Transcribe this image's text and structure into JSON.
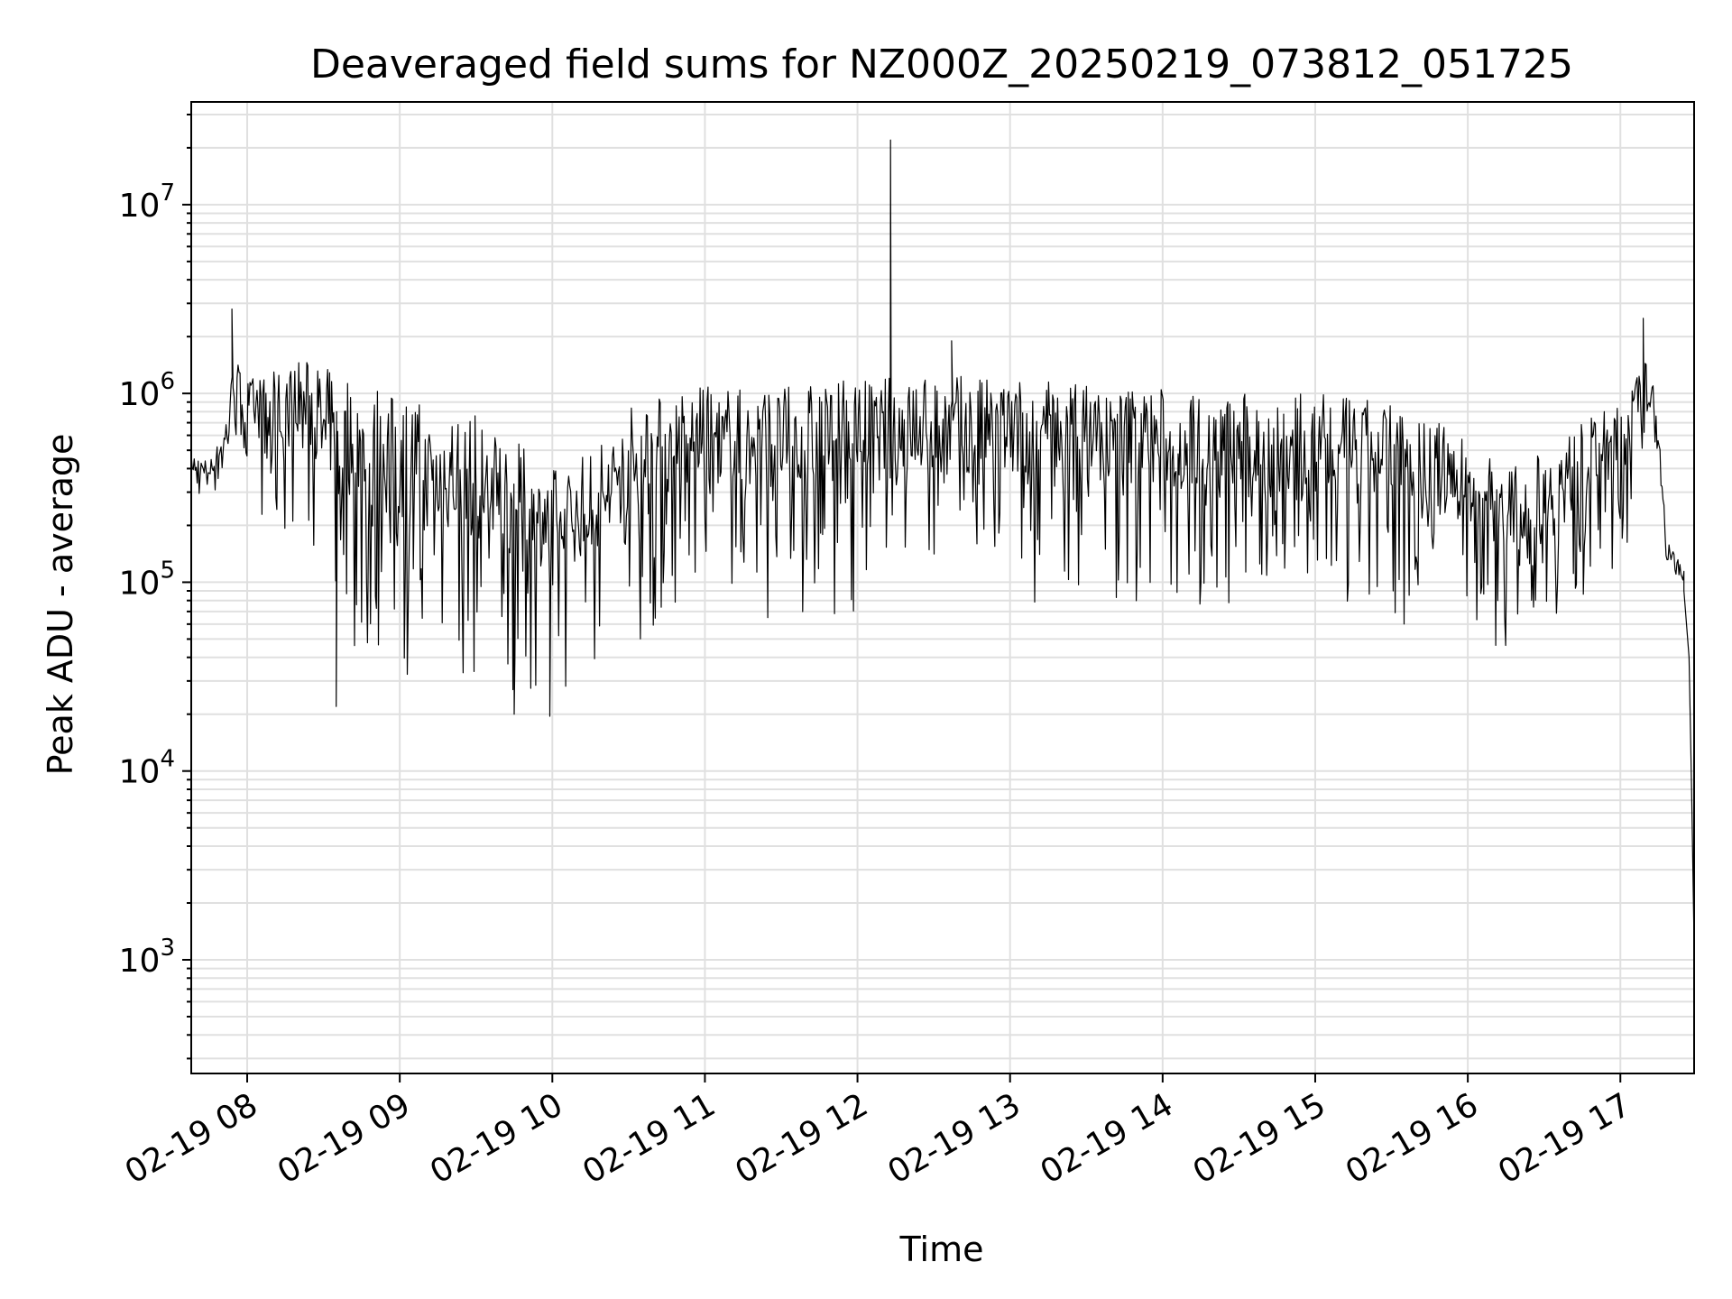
{
  "chart_data": {
    "type": "line",
    "title": "Deaveraged field sums for NZ000Z_20250219_073812_051725",
    "xlabel": "Time",
    "ylabel": "Peak ADU - average",
    "yscale": "log",
    "ylim": [
      250,
      35000000
    ],
    "xlim": [
      "2025-02-19 07:38",
      "2025-02-19 17:29"
    ],
    "grid": true,
    "grid_which": "both",
    "line_color": "#000000",
    "grid_color": "#e0e0e0",
    "x_ticks": [
      {
        "value": "2025-02-19 08:00",
        "label": "02-19 08"
      },
      {
        "value": "2025-02-19 09:00",
        "label": "02-19 09"
      },
      {
        "value": "2025-02-19 10:00",
        "label": "02-19 10"
      },
      {
        "value": "2025-02-19 11:00",
        "label": "02-19 11"
      },
      {
        "value": "2025-02-19 12:00",
        "label": "02-19 12"
      },
      {
        "value": "2025-02-19 13:00",
        "label": "02-19 13"
      },
      {
        "value": "2025-02-19 14:00",
        "label": "02-19 14"
      },
      {
        "value": "2025-02-19 15:00",
        "label": "02-19 15"
      },
      {
        "value": "2025-02-19 16:00",
        "label": "02-19 16"
      },
      {
        "value": "2025-02-19 17:00",
        "label": "02-19 17"
      }
    ],
    "y_ticks": [
      {
        "value": 1000,
        "base": "10",
        "exp": "3"
      },
      {
        "value": 10000,
        "base": "10",
        "exp": "4"
      },
      {
        "value": 100000,
        "base": "10",
        "exp": "5"
      },
      {
        "value": 1000000,
        "base": "10",
        "exp": "6"
      },
      {
        "value": 10000000,
        "base": "10",
        "exp": "7"
      }
    ],
    "series": [
      {
        "envelope": [
          {
            "x": "2025-02-19 07:38",
            "low": 300000,
            "high": 480000
          },
          {
            "x": "2025-02-19 07:45",
            "low": 260000,
            "high": 450000
          },
          {
            "x": "2025-02-19 07:50",
            "low": 330000,
            "high": 600000
          },
          {
            "x": "2025-02-19 07:55",
            "low": 500000,
            "high": 1600000
          },
          {
            "x": "2025-02-19 08:00",
            "low": 300000,
            "high": 1200000
          },
          {
            "x": "2025-02-19 08:10",
            "low": 150000,
            "high": 1300000
          },
          {
            "x": "2025-02-19 08:20",
            "low": 200000,
            "high": 1600000
          },
          {
            "x": "2025-02-19 08:30",
            "low": 80000,
            "high": 1400000
          },
          {
            "x": "2025-02-19 08:45",
            "low": 35000,
            "high": 1200000
          },
          {
            "x": "2025-02-19 09:00",
            "low": 30000,
            "high": 1000000
          },
          {
            "x": "2025-02-19 09:30",
            "low": 25000,
            "high": 800000
          },
          {
            "x": "2025-02-19 10:00",
            "low": 25000,
            "high": 400000
          },
          {
            "x": "2025-02-19 10:15",
            "low": 28000,
            "high": 500000
          },
          {
            "x": "2025-02-19 10:30",
            "low": 40000,
            "high": 900000
          },
          {
            "x": "2025-02-19 10:45",
            "low": 60000,
            "high": 1000000
          },
          {
            "x": "2025-02-19 11:00",
            "low": 80000,
            "high": 1100000
          },
          {
            "x": "2025-02-19 11:30",
            "low": 60000,
            "high": 1100000
          },
          {
            "x": "2025-02-19 12:00",
            "low": 70000,
            "high": 1200000
          },
          {
            "x": "2025-02-19 12:30",
            "low": 80000,
            "high": 1300000
          },
          {
            "x": "2025-02-19 13:00",
            "low": 80000,
            "high": 1200000
          },
          {
            "x": "2025-02-19 13:30",
            "low": 70000,
            "high": 1200000
          },
          {
            "x": "2025-02-19 14:00",
            "low": 70000,
            "high": 1100000
          },
          {
            "x": "2025-02-19 14:30",
            "low": 60000,
            "high": 1000000
          },
          {
            "x": "2025-02-19 15:00",
            "low": 60000,
            "high": 1000000
          },
          {
            "x": "2025-02-19 15:30",
            "low": 60000,
            "high": 900000
          },
          {
            "x": "2025-02-19 16:00",
            "low": 50000,
            "high": 600000
          },
          {
            "x": "2025-02-19 16:15",
            "low": 45000,
            "high": 400000
          },
          {
            "x": "2025-02-19 16:30",
            "low": 60000,
            "high": 500000
          },
          {
            "x": "2025-02-19 16:45",
            "low": 80000,
            "high": 700000
          },
          {
            "x": "2025-02-19 17:00",
            "low": 100000,
            "high": 900000
          },
          {
            "x": "2025-02-19 17:10",
            "low": 400000,
            "high": 1500000
          },
          {
            "x": "2025-02-19 17:15",
            "low": 300000,
            "high": 900000
          },
          {
            "x": "2025-02-19 17:18",
            "low": 130000,
            "high": 170000
          },
          {
            "x": "2025-02-19 17:25",
            "low": 80000,
            "high": 120000
          }
        ],
        "spikes": [
          {
            "x": "2025-02-19 07:54",
            "y": 2800000
          },
          {
            "x": "2025-02-19 08:35",
            "y": 22000
          },
          {
            "x": "2025-02-19 09:45",
            "y": 20000
          },
          {
            "x": "2025-02-19 09:59",
            "y": 19500
          },
          {
            "x": "2025-02-19 12:13",
            "y": 22000000
          },
          {
            "x": "2025-02-19 12:37",
            "y": 1900000
          },
          {
            "x": "2025-02-19 17:09",
            "y": 2500000
          }
        ],
        "tail": [
          {
            "x": "2025-02-19 17:25",
            "y": 90000
          },
          {
            "x": "2025-02-19 17:27",
            "y": 40000
          },
          {
            "x": "2025-02-19 17:28",
            "y": 8000
          },
          {
            "x": "2025-02-19 17:29",
            "y": 1200
          }
        ]
      }
    ]
  }
}
